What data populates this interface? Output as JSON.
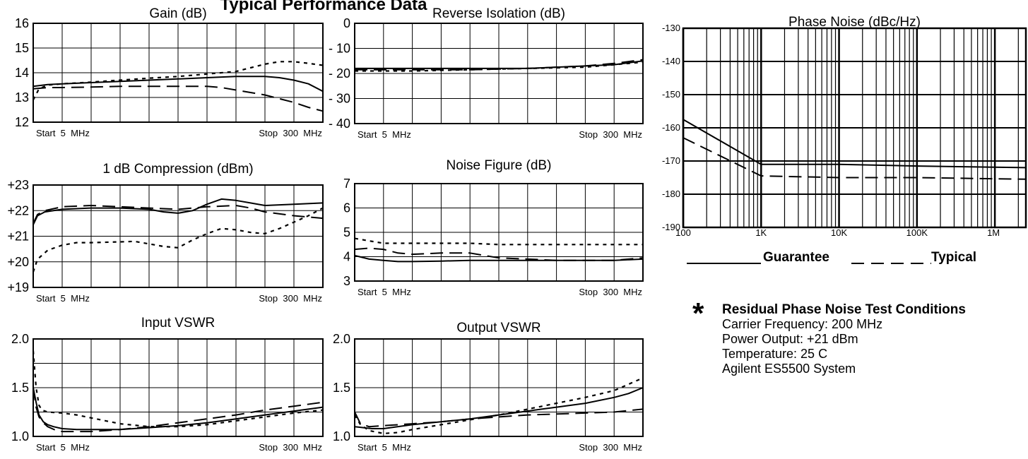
{
  "page_title": "Typical Performance Data",
  "legend": {
    "guarantee_label": "Guarantee",
    "typical_label": "Typical"
  },
  "test_conditions": {
    "star": "*",
    "heading": "Residual Phase Noise Test Conditions",
    "lines": [
      "Carrier Frequency: 200 MHz",
      "Power Output: +21 dBm",
      "Temperature: 25 C",
      "Agilent ES5500 System"
    ]
  },
  "chart_data": [
    {
      "id": "gain",
      "type": "line",
      "title": "Gain (dB)",
      "x_start_label": "Start  5  MHz",
      "x_stop_label": "Stop  300  MHz",
      "x_range": [
        0,
        10
      ],
      "ylim": [
        12,
        16
      ],
      "y_ticks": [
        16,
        15,
        14,
        13,
        12
      ],
      "y_tick_labels": [
        "16",
        "15",
        "14",
        "13",
        "12"
      ],
      "grid": true,
      "series": [
        {
          "style": "solid",
          "x": [
            0,
            0.5,
            1,
            2,
            3,
            4,
            5,
            6,
            7,
            7.5,
            8,
            8.5,
            9,
            9.5,
            10
          ],
          "y": [
            13.45,
            13.52,
            13.55,
            13.6,
            13.65,
            13.7,
            13.75,
            13.8,
            13.85,
            13.85,
            13.85,
            13.8,
            13.7,
            13.55,
            13.25
          ]
        },
        {
          "style": "dash",
          "x": [
            0,
            0.5,
            1,
            2,
            3,
            4,
            5,
            6,
            6.5,
            7,
            7.5,
            8,
            8.5,
            9,
            9.5,
            10
          ],
          "y": [
            13.35,
            13.4,
            13.4,
            13.42,
            13.45,
            13.45,
            13.45,
            13.45,
            13.4,
            13.3,
            13.2,
            13.1,
            12.95,
            12.8,
            12.6,
            12.45
          ]
        },
        {
          "style": "dot",
          "x": [
            0,
            0.2,
            0.5,
            1,
            2,
            3,
            4,
            5,
            6,
            7,
            7.5,
            8,
            8.5,
            9,
            9.5,
            10
          ],
          "y": [
            12.9,
            13.35,
            13.5,
            13.55,
            13.62,
            13.7,
            13.78,
            13.85,
            13.95,
            14.05,
            14.2,
            14.35,
            14.45,
            14.45,
            14.38,
            14.3
          ]
        }
      ]
    },
    {
      "id": "reverse_isolation",
      "type": "line",
      "title": "Reverse Isolation (dB)",
      "x_start_label": "Start  5  MHz",
      "x_stop_label": "Stop  300  MHz",
      "x_range": [
        0,
        10
      ],
      "ylim": [
        -40,
        0
      ],
      "y_ticks": [
        0,
        -10,
        -20,
        -30,
        -40
      ],
      "y_tick_labels": [
        "0",
        "- 10",
        "- 20",
        "- 30",
        "- 40"
      ],
      "grid": true,
      "series": [
        {
          "style": "solid",
          "x": [
            0,
            2,
            4,
            6,
            8,
            9,
            10
          ],
          "y": [
            -18,
            -18,
            -18,
            -18,
            -17,
            -16.5,
            -15
          ]
        },
        {
          "style": "dash",
          "x": [
            0,
            2,
            4,
            6,
            8,
            9,
            10
          ],
          "y": [
            -18.5,
            -18.5,
            -18.5,
            -18,
            -17,
            -16,
            -14.5
          ]
        },
        {
          "style": "dot",
          "x": [
            0,
            2,
            4,
            6,
            8,
            9,
            10
          ],
          "y": [
            -19,
            -19,
            -18.5,
            -18,
            -17.5,
            -16.5,
            -15.5
          ]
        }
      ]
    },
    {
      "id": "compression",
      "type": "line",
      "title": "1 dB Compression (dBm)",
      "x_start_label": "Start  5  MHz",
      "x_stop_label": "Stop  300  MHz",
      "x_range": [
        0,
        10
      ],
      "ylim": [
        19,
        23
      ],
      "y_ticks": [
        23,
        22,
        21,
        20,
        19
      ],
      "y_tick_labels": [
        "+23",
        "+22",
        "+21",
        "+20",
        "+19"
      ],
      "grid": true,
      "series": [
        {
          "style": "solid",
          "x": [
            0,
            0.15,
            0.4,
            1,
            2,
            3,
            4,
            4.5,
            5,
            5.5,
            6,
            6.5,
            7,
            7.5,
            8,
            9,
            10
          ],
          "y": [
            21.45,
            21.8,
            21.95,
            22.05,
            22.1,
            22.1,
            22.05,
            21.95,
            21.9,
            22.0,
            22.25,
            22.45,
            22.4,
            22.3,
            22.2,
            22.25,
            22.3
          ]
        },
        {
          "style": "dash",
          "x": [
            0,
            0.15,
            0.4,
            1,
            2,
            3,
            4,
            5,
            6,
            7,
            7.5,
            8,
            9,
            9.5,
            10
          ],
          "y": [
            21.5,
            21.85,
            22.0,
            22.15,
            22.2,
            22.15,
            22.1,
            22.05,
            22.15,
            22.2,
            22.1,
            21.95,
            21.8,
            21.75,
            21.7
          ]
        },
        {
          "style": "dot",
          "x": [
            0,
            0.15,
            0.5,
            1,
            1.5,
            2,
            3,
            3.5,
            4,
            4.5,
            5,
            5.5,
            6,
            6.5,
            7,
            7.5,
            8,
            8.5,
            9,
            9.5,
            10
          ],
          "y": [
            19.6,
            20.1,
            20.45,
            20.65,
            20.75,
            20.75,
            20.78,
            20.8,
            20.7,
            20.6,
            20.55,
            20.85,
            21.1,
            21.3,
            21.25,
            21.15,
            21.1,
            21.3,
            21.55,
            21.8,
            22.1
          ]
        }
      ]
    },
    {
      "id": "noise_figure",
      "type": "line",
      "title": "Noise Figure (dB)",
      "x_start_label": "Start  5  MHz",
      "x_stop_label": "Stop  300  MHz",
      "x_range": [
        0,
        10
      ],
      "ylim": [
        3,
        7
      ],
      "y_ticks": [
        7,
        6,
        5,
        4,
        3
      ],
      "y_tick_labels": [
        "7",
        "6",
        "5",
        "4",
        "3"
      ],
      "grid": true,
      "series": [
        {
          "style": "solid",
          "x": [
            0,
            0.5,
            1,
            1.5,
            2,
            3,
            4,
            5,
            6,
            7,
            8,
            9,
            10
          ],
          "y": [
            4.05,
            3.9,
            3.85,
            3.8,
            3.8,
            3.82,
            3.85,
            3.85,
            3.85,
            3.85,
            3.85,
            3.85,
            3.9
          ]
        },
        {
          "style": "dash",
          "x": [
            0,
            0.5,
            1,
            1.5,
            2,
            3,
            4,
            4.5,
            5,
            6,
            7,
            8,
            9,
            10
          ],
          "y": [
            4.3,
            4.35,
            4.3,
            4.15,
            4.1,
            4.15,
            4.15,
            4.05,
            3.95,
            3.9,
            3.85,
            3.85,
            3.85,
            3.95
          ]
        },
        {
          "style": "dot",
          "x": [
            0,
            0.5,
            1,
            2,
            3,
            4,
            5,
            6,
            7,
            8,
            9,
            10
          ],
          "y": [
            4.75,
            4.65,
            4.55,
            4.55,
            4.55,
            4.55,
            4.5,
            4.5,
            4.5,
            4.5,
            4.5,
            4.5
          ]
        }
      ]
    },
    {
      "id": "input_vswr",
      "type": "line",
      "title": "Input VSWR",
      "x_start_label": "Start  5  MHz",
      "x_stop_label": "Stop  300  MHz",
      "x_range": [
        0,
        10
      ],
      "ylim": [
        1.0,
        2.0
      ],
      "y_ticks": [
        2.0,
        1.5,
        1.0
      ],
      "y_tick_labels": [
        "2.0",
        "1.5",
        "1.0"
      ],
      "grid": true,
      "series": [
        {
          "style": "solid",
          "x": [
            0,
            0.1,
            0.2,
            0.35,
            0.5,
            0.7,
            1,
            1.5,
            2,
            3,
            4,
            5,
            6,
            7,
            8,
            9,
            10
          ],
          "y": [
            1.5,
            1.35,
            1.22,
            1.15,
            1.12,
            1.1,
            1.08,
            1.07,
            1.07,
            1.07,
            1.09,
            1.11,
            1.14,
            1.18,
            1.22,
            1.26,
            1.3
          ]
        },
        {
          "style": "dash",
          "x": [
            0,
            0.1,
            0.2,
            0.35,
            0.5,
            0.8,
            1,
            1.5,
            2,
            3,
            4,
            5,
            6,
            7,
            8,
            9,
            10
          ],
          "y": [
            1.5,
            1.3,
            1.2,
            1.14,
            1.1,
            1.06,
            1.05,
            1.05,
            1.05,
            1.07,
            1.1,
            1.14,
            1.18,
            1.22,
            1.27,
            1.31,
            1.35
          ]
        },
        {
          "style": "dot",
          "x": [
            0,
            0.1,
            0.2,
            0.3,
            0.5,
            1,
            1.5,
            2,
            3,
            4,
            5,
            6,
            7,
            8,
            9,
            10
          ],
          "y": [
            1.88,
            1.5,
            1.32,
            1.27,
            1.25,
            1.24,
            1.22,
            1.19,
            1.13,
            1.1,
            1.1,
            1.12,
            1.16,
            1.2,
            1.24,
            1.27
          ]
        }
      ]
    },
    {
      "id": "output_vswr",
      "type": "line",
      "title": "Output VSWR",
      "x_start_label": "Start  5  MHz",
      "x_stop_label": "Stop  300  MHz",
      "x_range": [
        0,
        10
      ],
      "ylim": [
        1.0,
        2.0
      ],
      "y_ticks": [
        2.0,
        1.5,
        1.0
      ],
      "y_tick_labels": [
        "2.0",
        "1.5",
        "1.0"
      ],
      "grid": true,
      "series": [
        {
          "style": "solid",
          "x": [
            0,
            0.3,
            0.6,
            1,
            2,
            3,
            4,
            5,
            6,
            7,
            8,
            9,
            9.5,
            10
          ],
          "y": [
            1.1,
            1.09,
            1.08,
            1.08,
            1.12,
            1.15,
            1.18,
            1.22,
            1.26,
            1.3,
            1.34,
            1.4,
            1.44,
            1.5
          ]
        },
        {
          "style": "dash",
          "x": [
            0,
            0.2,
            0.5,
            1,
            2,
            3,
            4,
            5,
            6,
            7,
            8,
            9,
            10
          ],
          "y": [
            1.25,
            1.13,
            1.1,
            1.11,
            1.13,
            1.15,
            1.18,
            1.2,
            1.22,
            1.23,
            1.24,
            1.25,
            1.28
          ]
        },
        {
          "style": "dot",
          "x": [
            0,
            0.2,
            0.5,
            1,
            1.5,
            2,
            3,
            4,
            5,
            6,
            7,
            8,
            9,
            10
          ],
          "y": [
            1.22,
            1.12,
            1.06,
            1.03,
            1.04,
            1.07,
            1.12,
            1.17,
            1.22,
            1.28,
            1.34,
            1.4,
            1.47,
            1.6
          ]
        }
      ]
    },
    {
      "id": "phase_noise",
      "type": "line",
      "title": "Phase Noise (dBc/Hz)",
      "x_scale": "log",
      "x_range": [
        100,
        2500000
      ],
      "x_tick_values": [
        100,
        1000,
        10000,
        100000,
        1000000
      ],
      "x_tick_labels": [
        "100",
        "1K",
        "10K",
        "100K",
        "1M"
      ],
      "ylim": [
        -190,
        -130
      ],
      "y_ticks": [
        -130,
        -140,
        -150,
        -160,
        -170,
        -180,
        -190
      ],
      "y_tick_labels": [
        "-130",
        "-140",
        "-150",
        "-160",
        "-170",
        "-180",
        "-190"
      ],
      "grid": true,
      "series": [
        {
          "style": "solid",
          "name": "Guarantee",
          "x": [
            100,
            1000,
            10000,
            100000,
            2500000
          ],
          "y": [
            -157.5,
            -171,
            -171,
            -171.5,
            -172
          ]
        },
        {
          "style": "dash",
          "name": "Typical",
          "x": [
            100,
            1000,
            10000,
            100000,
            2500000
          ],
          "y": [
            -163,
            -174.5,
            -175,
            -175,
            -175.5
          ]
        }
      ]
    }
  ]
}
